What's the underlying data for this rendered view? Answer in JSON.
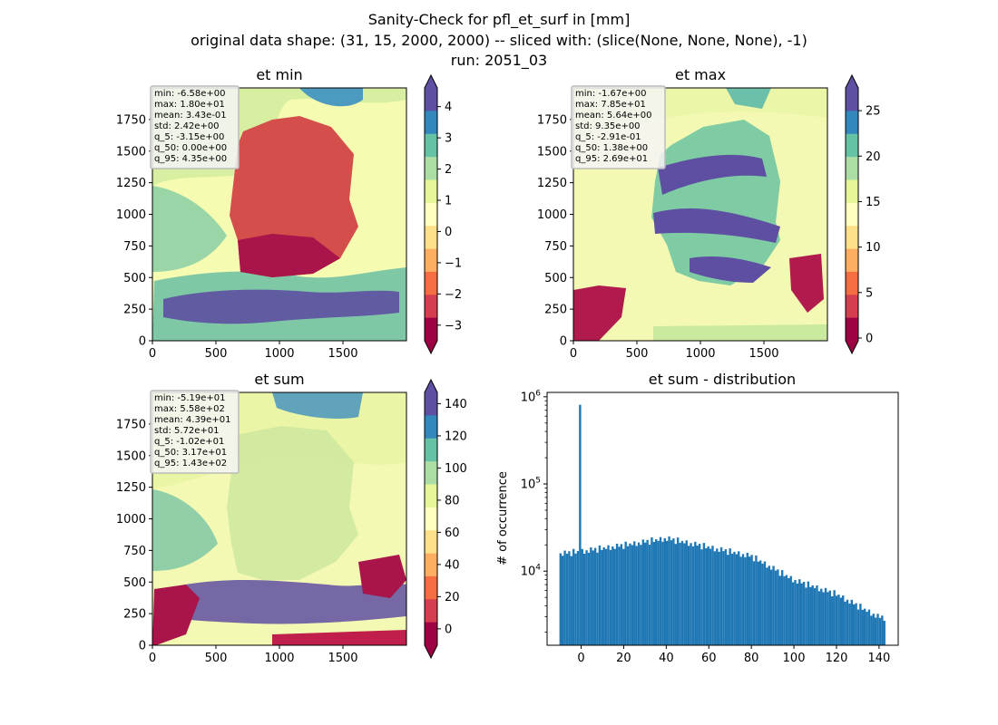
{
  "figure": {
    "title_lines": [
      "Sanity-Check for pfl_et_surf in [mm]",
      "original data shape: (31, 15, 2000, 2000) -- sliced with: (slice(None, None, None), -1)",
      "run: 2051_03"
    ]
  },
  "colors": {
    "spectral": [
      "#9e0142",
      "#d53e4f",
      "#f46d43",
      "#fdae61",
      "#fee08b",
      "#ffffbf",
      "#e6f598",
      "#abdda4",
      "#66c2a5",
      "#3288bd",
      "#5e4fa2"
    ],
    "hist_bar": "#1f77b4"
  },
  "chart_data": [
    {
      "type": "heatmap",
      "title": "et min",
      "x_ticks": [
        "0",
        "500",
        "1000",
        "1500"
      ],
      "y_ticks": [
        "0",
        "250",
        "500",
        "750",
        "1000",
        "1250",
        "1500",
        "1750"
      ],
      "xlim": [
        0,
        2000
      ],
      "ylim": [
        0,
        2000
      ],
      "colorbar": {
        "vmin": -3.5,
        "vmax": 4.6,
        "ticks": [
          "−3",
          "−2",
          "−1",
          "0",
          "1",
          "2",
          "3",
          "4"
        ],
        "tick_values": [
          -3,
          -2,
          -1,
          0,
          1,
          2,
          3,
          4
        ],
        "extend": "both"
      },
      "stats": [
        "min: -6.58e+00",
        "max: 1.80e+01",
        "mean: 3.43e-01",
        "std: 2.42e+00",
        "q_5: -3.15e+00",
        "q_50: 0.00e+00",
        "q_95: 4.35e+00"
      ]
    },
    {
      "type": "heatmap",
      "title": "et max",
      "x_ticks": [
        "0",
        "500",
        "1000",
        "1500"
      ],
      "y_ticks": [
        "0",
        "250",
        "500",
        "750",
        "1000",
        "1250",
        "1500",
        "1750"
      ],
      "xlim": [
        0,
        2000
      ],
      "ylim": [
        0,
        2000
      ],
      "colorbar": {
        "vmin": -0.3,
        "vmax": 27.5,
        "ticks": [
          "0",
          "5",
          "10",
          "15",
          "20",
          "25"
        ],
        "tick_values": [
          0,
          5,
          10,
          15,
          20,
          25
        ],
        "extend": "both"
      },
      "stats": [
        "min: -1.67e+00",
        "max: 7.85e+01",
        "mean: 5.64e+00",
        "std: 9.35e+00",
        "q_5: -2.91e-01",
        "q_50: 1.38e+00",
        "q_95: 2.69e+01"
      ]
    },
    {
      "type": "heatmap",
      "title": "et sum",
      "x_ticks": [
        "0",
        "500",
        "1000",
        "1500"
      ],
      "y_ticks": [
        "0",
        "250",
        "500",
        "750",
        "1000",
        "1250",
        "1500",
        "1750"
      ],
      "xlim": [
        0,
        2000
      ],
      "ylim": [
        0,
        2000
      ],
      "colorbar": {
        "vmin": -10.2,
        "vmax": 147,
        "ticks": [
          "0",
          "20",
          "40",
          "60",
          "80",
          "100",
          "120",
          "140"
        ],
        "tick_values": [
          0,
          20,
          40,
          60,
          80,
          100,
          120,
          140
        ],
        "extend": "both"
      },
      "stats": [
        "min: -5.19e+01",
        "max: 5.58e+02",
        "mean: 4.39e+01",
        "std: 5.72e+01",
        "q_5: -1.02e+01",
        "q_50: 3.17e+01",
        "q_95: 1.43e+02"
      ]
    },
    {
      "type": "bar",
      "title": "et sum - distribution",
      "ylabel": "# of occurrence",
      "y_scale": "log",
      "xlim": [
        -16,
        149
      ],
      "ylim_log10": [
        3.15,
        6.05
      ],
      "x_ticks": [
        "0",
        "20",
        "40",
        "60",
        "80",
        "100",
        "120",
        "140"
      ],
      "x_tick_values": [
        0,
        20,
        40,
        60,
        80,
        100,
        120,
        140
      ],
      "y_ticks": [
        {
          "base": "10",
          "exp": "4",
          "value": 10000
        },
        {
          "base": "10",
          "exp": "5",
          "value": 100000
        },
        {
          "base": "10",
          "exp": "6",
          "value": 1000000
        }
      ],
      "bins": {
        "start": -10.2,
        "end": 143,
        "count": 150
      },
      "spike": {
        "x": 0,
        "count": 810000
      },
      "profile": [
        [
          -10,
          16000
        ],
        [
          0,
          17000
        ],
        [
          20,
          20000
        ],
        [
          40,
          24000
        ],
        [
          60,
          19000
        ],
        [
          80,
          15000
        ],
        [
          100,
          8000
        ],
        [
          120,
          5500
        ],
        [
          140,
          3000
        ]
      ]
    }
  ]
}
